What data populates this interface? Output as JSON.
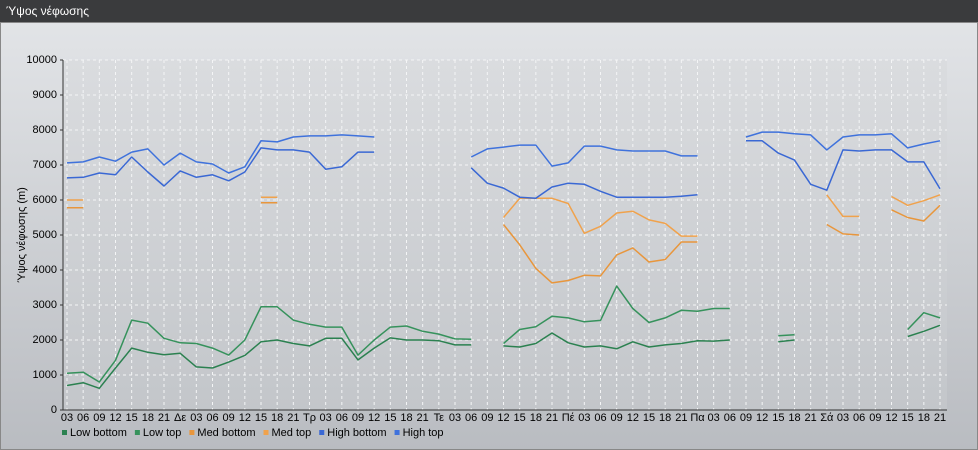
{
  "window_title": "Ύψος νέφωσης",
  "chart_data": {
    "type": "line",
    "y_label": "Ύψος νέφωσης (m)",
    "categories": [
      "03",
      "06",
      "09",
      "12",
      "15",
      "18",
      "21",
      "Δε",
      "03",
      "06",
      "09",
      "12",
      "15",
      "18",
      "21",
      "Τρ",
      "03",
      "06",
      "09",
      "12",
      "15",
      "18",
      "21",
      "Τε",
      "03",
      "06",
      "09",
      "12",
      "15",
      "18",
      "21",
      "Πέ",
      "03",
      "06",
      "09",
      "12",
      "15",
      "18",
      "21",
      "Πα",
      "03",
      "06",
      "09",
      "12",
      "15",
      "18",
      "21",
      "Σά",
      "03",
      "06",
      "09",
      "12",
      "15",
      "18",
      "21"
    ],
    "ylim": [
      0,
      10000
    ],
    "yticks": [
      0,
      1000,
      2000,
      3000,
      4000,
      5000,
      6000,
      7000,
      8000,
      9000,
      10000
    ],
    "grid": true,
    "series": [
      {
        "name": "Low bottom",
        "color": "#2b8150",
        "values": [
          700,
          780,
          620,
          1200,
          1770,
          1650,
          1580,
          1620,
          1230,
          1200,
          1370,
          1560,
          1950,
          2000,
          1900,
          1830,
          2050,
          2050,
          1430,
          1770,
          2060,
          2000,
          2000,
          1980,
          1860,
          1860,
          null,
          1830,
          1800,
          1900,
          2200,
          1920,
          1800,
          1830,
          1750,
          1950,
          1800,
          1860,
          1900,
          1980,
          1970,
          2000,
          null,
          null,
          1950,
          2000,
          null,
          null,
          null,
          null,
          null,
          null,
          2100,
          2250,
          2420
        ]
      },
      {
        "name": "Low top",
        "color": "#36925c",
        "values": [
          1050,
          1080,
          800,
          1420,
          2570,
          2480,
          2050,
          1920,
          1900,
          1770,
          1570,
          2000,
          2950,
          2950,
          2570,
          2450,
          2370,
          2370,
          1570,
          2000,
          2370,
          2400,
          2250,
          2170,
          2030,
          2020,
          null,
          1900,
          2300,
          2380,
          2680,
          2630,
          2520,
          2560,
          3540,
          2900,
          2500,
          2630,
          2850,
          2820,
          2900,
          2900,
          null,
          null,
          2120,
          2150,
          null,
          null,
          null,
          null,
          null,
          null,
          2300,
          2780,
          2630
        ]
      },
      {
        "name": "Med bottom",
        "color": "#e8963c",
        "values": [
          5780,
          5780,
          null,
          null,
          null,
          null,
          null,
          null,
          null,
          null,
          null,
          null,
          5920,
          5920,
          null,
          null,
          null,
          null,
          null,
          null,
          null,
          null,
          null,
          null,
          null,
          null,
          null,
          5300,
          4720,
          4050,
          3630,
          3700,
          3850,
          3830,
          4430,
          4630,
          4230,
          4300,
          4800,
          4800,
          null,
          null,
          null,
          null,
          null,
          null,
          null,
          5300,
          5030,
          5000,
          null,
          5720,
          5500,
          5400,
          5850
        ]
      },
      {
        "name": "Med top",
        "color": "#f0a24c",
        "values": [
          6000,
          6000,
          null,
          null,
          null,
          null,
          null,
          null,
          null,
          null,
          null,
          null,
          6080,
          6080,
          null,
          null,
          null,
          null,
          null,
          null,
          null,
          null,
          null,
          null,
          null,
          null,
          null,
          5500,
          6050,
          6050,
          6050,
          5900,
          5050,
          5250,
          5630,
          5680,
          5430,
          5330,
          4970,
          4970,
          null,
          null,
          null,
          null,
          null,
          null,
          null,
          6150,
          5530,
          5530,
          null,
          6100,
          5850,
          5980,
          6150
        ]
      },
      {
        "name": "High bottom",
        "color": "#3a68d4",
        "values": [
          6630,
          6650,
          6770,
          6720,
          7230,
          6800,
          6400,
          6830,
          6650,
          6720,
          6550,
          6800,
          7490,
          7430,
          7430,
          7370,
          6880,
          6950,
          7370,
          7370,
          null,
          null,
          null,
          null,
          null,
          6920,
          6480,
          6340,
          6080,
          6050,
          6370,
          6480,
          6450,
          6250,
          6080,
          6080,
          6080,
          6080,
          6110,
          6150,
          null,
          null,
          7690,
          7690,
          7340,
          7140,
          6450,
          6280,
          7430,
          7400,
          7430,
          7430,
          7090,
          7090,
          6320
        ]
      },
      {
        "name": "High top",
        "color": "#3f72dc",
        "values": [
          7060,
          7090,
          7230,
          7110,
          7370,
          7460,
          7000,
          7340,
          7090,
          7030,
          6770,
          6950,
          7690,
          7660,
          7800,
          7830,
          7830,
          7860,
          7830,
          7800,
          null,
          null,
          null,
          null,
          null,
          7230,
          7460,
          7510,
          7570,
          7570,
          6970,
          7060,
          7540,
          7540,
          7430,
          7400,
          7400,
          7400,
          7260,
          7260,
          null,
          null,
          7800,
          7940,
          7940,
          7890,
          7860,
          7430,
          7800,
          7860,
          7860,
          7890,
          7490,
          7600,
          7690
        ]
      }
    ]
  }
}
